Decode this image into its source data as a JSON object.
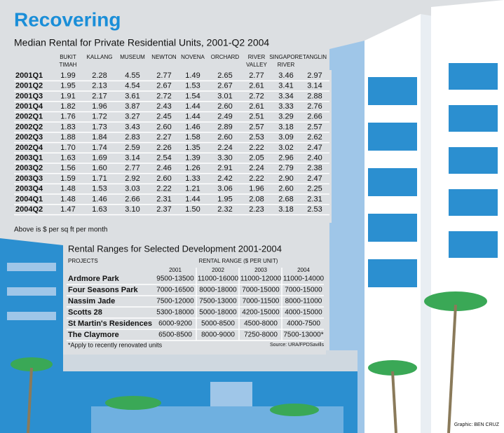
{
  "title": "Recovering",
  "table1": {
    "title": "Median Rental for Private Residential Units, 2001-Q2 2004",
    "columns": [
      [
        "BUKIT",
        "TIMAH"
      ],
      [
        "KALLANG"
      ],
      [
        "MUSEUM"
      ],
      [
        "NEWTON"
      ],
      [
        "NOVENA"
      ],
      [
        "ORCHARD"
      ],
      [
        "RIVER",
        "VALLEY"
      ],
      [
        "SINGAPORE",
        "RIVER"
      ],
      [
        "TANGLIN"
      ]
    ],
    "rows": [
      [
        "2001Q1",
        "1.99",
        "2.28",
        "4.55",
        "2.77",
        "1.49",
        "2.65",
        "2.77",
        "3.46",
        "2.97"
      ],
      [
        "2001Q2",
        "1.95",
        "2.13",
        "4.54",
        "2.67",
        "1.53",
        "2.67",
        "2.61",
        "3.41",
        "3.14"
      ],
      [
        "2001Q3",
        "1.91",
        "2.17",
        "3.61",
        "2.72",
        "1.54",
        "3.01",
        "2.72",
        "3.34",
        "2.88"
      ],
      [
        "2001Q4",
        "1.82",
        "1.96",
        "3.87",
        "2.43",
        "1.44",
        "2.60",
        "2.61",
        "3.33",
        "2.76"
      ],
      [
        "2002Q1",
        "1.76",
        "1.72",
        "3.27",
        "2.45",
        "1.44",
        "2.49",
        "2.51",
        "3.29",
        "2.66"
      ],
      [
        "2002Q2",
        "1.83",
        "1.73",
        "3.43",
        "2.60",
        "1.46",
        "2.89",
        "2.57",
        "3.18",
        "2.57"
      ],
      [
        "2002Q3",
        "1.88",
        "1.84",
        "2.83",
        "2.27",
        "1.58",
        "2.60",
        "2.53",
        "3.09",
        "2.62"
      ],
      [
        "2002Q4",
        "1.70",
        "1.74",
        "2.59",
        "2.26",
        "1.35",
        "2.24",
        "2.22",
        "3.02",
        "2.47"
      ],
      [
        "2003Q1",
        "1.63",
        "1.69",
        "3.14",
        "2.54",
        "1.39",
        "3.30",
        "2.05",
        "2.96",
        "2.40"
      ],
      [
        "2003Q2",
        "1.56",
        "1.60",
        "2.77",
        "2.46",
        "1.26",
        "2.91",
        "2.24",
        "2.79",
        "2.38"
      ],
      [
        "2003Q3",
        "1.59",
        "1.71",
        "2.92",
        "2.60",
        "1.33",
        "2.42",
        "2.22",
        "2.90",
        "2.47"
      ],
      [
        "2003Q4",
        "1.48",
        "1.53",
        "3.03",
        "2.22",
        "1.21",
        "3.06",
        "1.96",
        "2.60",
        "2.25"
      ],
      [
        "2004Q1",
        "1.48",
        "1.46",
        "2.66",
        "2.31",
        "1.44",
        "1.95",
        "2.08",
        "2.68",
        "2.31"
      ],
      [
        "2004Q2",
        "1.47",
        "1.63",
        "3.10",
        "2.37",
        "1.50",
        "2.32",
        "2.23",
        "3.18",
        "2.53"
      ]
    ],
    "note": "Above is $ per sq ft per month"
  },
  "table2": {
    "title": "Rental Ranges for Selected Development 2001-2004",
    "projects_header": "PROJECTS",
    "range_header": "RENTAL RANGE ($ PER UNIT)",
    "years": [
      "2001",
      "2002",
      "2003",
      "2004"
    ],
    "rows": [
      [
        "Ardmore Park",
        "9500-13500",
        "11000-16000",
        "11000-12000",
        "11000-14000"
      ],
      [
        "Four Seasons Park",
        "7000-16500",
        "8000-18000",
        "7000-15000",
        "7000-15000"
      ],
      [
        "Nassim Jade",
        "7500-12000",
        "7500-13000",
        "7000-11500",
        "8000-11000"
      ],
      [
        "Scotts 28",
        "5300-18000",
        "5000-18000",
        "4200-15000",
        "4000-15000"
      ],
      [
        "St Martin's Residences",
        "6000-9200",
        "5000-8500",
        "4500-8000",
        "4000-7500"
      ],
      [
        "The Claymore",
        "6500-8500",
        "8000-9000",
        "7250-8000",
        "7500-13000*"
      ]
    ],
    "footnote": "*Apply to recently renovated units",
    "source": "Source: URA/FPDSavills"
  },
  "credit": "Graphic: BEN CRUZ"
}
